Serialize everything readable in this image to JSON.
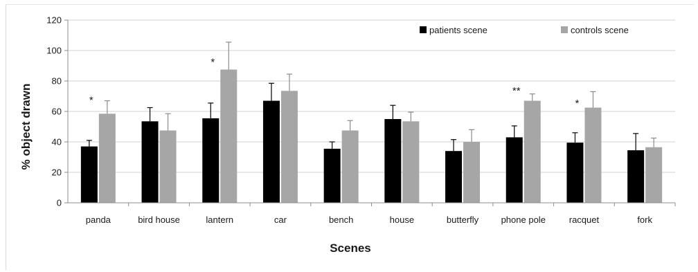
{
  "chart_data": {
    "type": "bar",
    "xlabel": "Scenes",
    "ylabel": "% object drawn",
    "ylim": [
      0,
      120
    ],
    "yticks": [
      0,
      20,
      40,
      60,
      80,
      100,
      120
    ],
    "grid": true,
    "legend_position": "top-right",
    "categories": [
      "panda",
      "bird house",
      "lantern",
      "car",
      "bench",
      "house",
      "butterfly",
      "phone pole",
      "racquet",
      "fork"
    ],
    "series": [
      {
        "name": "patients scene",
        "color": "#000000",
        "values": [
          37,
          53.5,
          55.5,
          67,
          35.5,
          55,
          34,
          43,
          39.5,
          34.5
        ],
        "error": [
          4,
          9,
          10,
          11.5,
          4.5,
          9,
          7.5,
          7.5,
          6.5,
          11
        ]
      },
      {
        "name": "controls scene",
        "color": "#a6a6a6",
        "values": [
          58.5,
          47.5,
          87.5,
          73.5,
          47.5,
          53.5,
          40,
          67,
          62.5,
          36.5
        ],
        "error": [
          8.5,
          11,
          18,
          11,
          6.5,
          6,
          8,
          4.5,
          10.5,
          6
        ]
      }
    ],
    "annotations": [
      {
        "category": "panda",
        "text": "*",
        "y": 68
      },
      {
        "category": "lantern",
        "text": "*",
        "y": 93
      },
      {
        "category": "phone pole",
        "text": "**",
        "y": 74
      },
      {
        "category": "racquet",
        "text": "*",
        "y": 66
      }
    ]
  }
}
